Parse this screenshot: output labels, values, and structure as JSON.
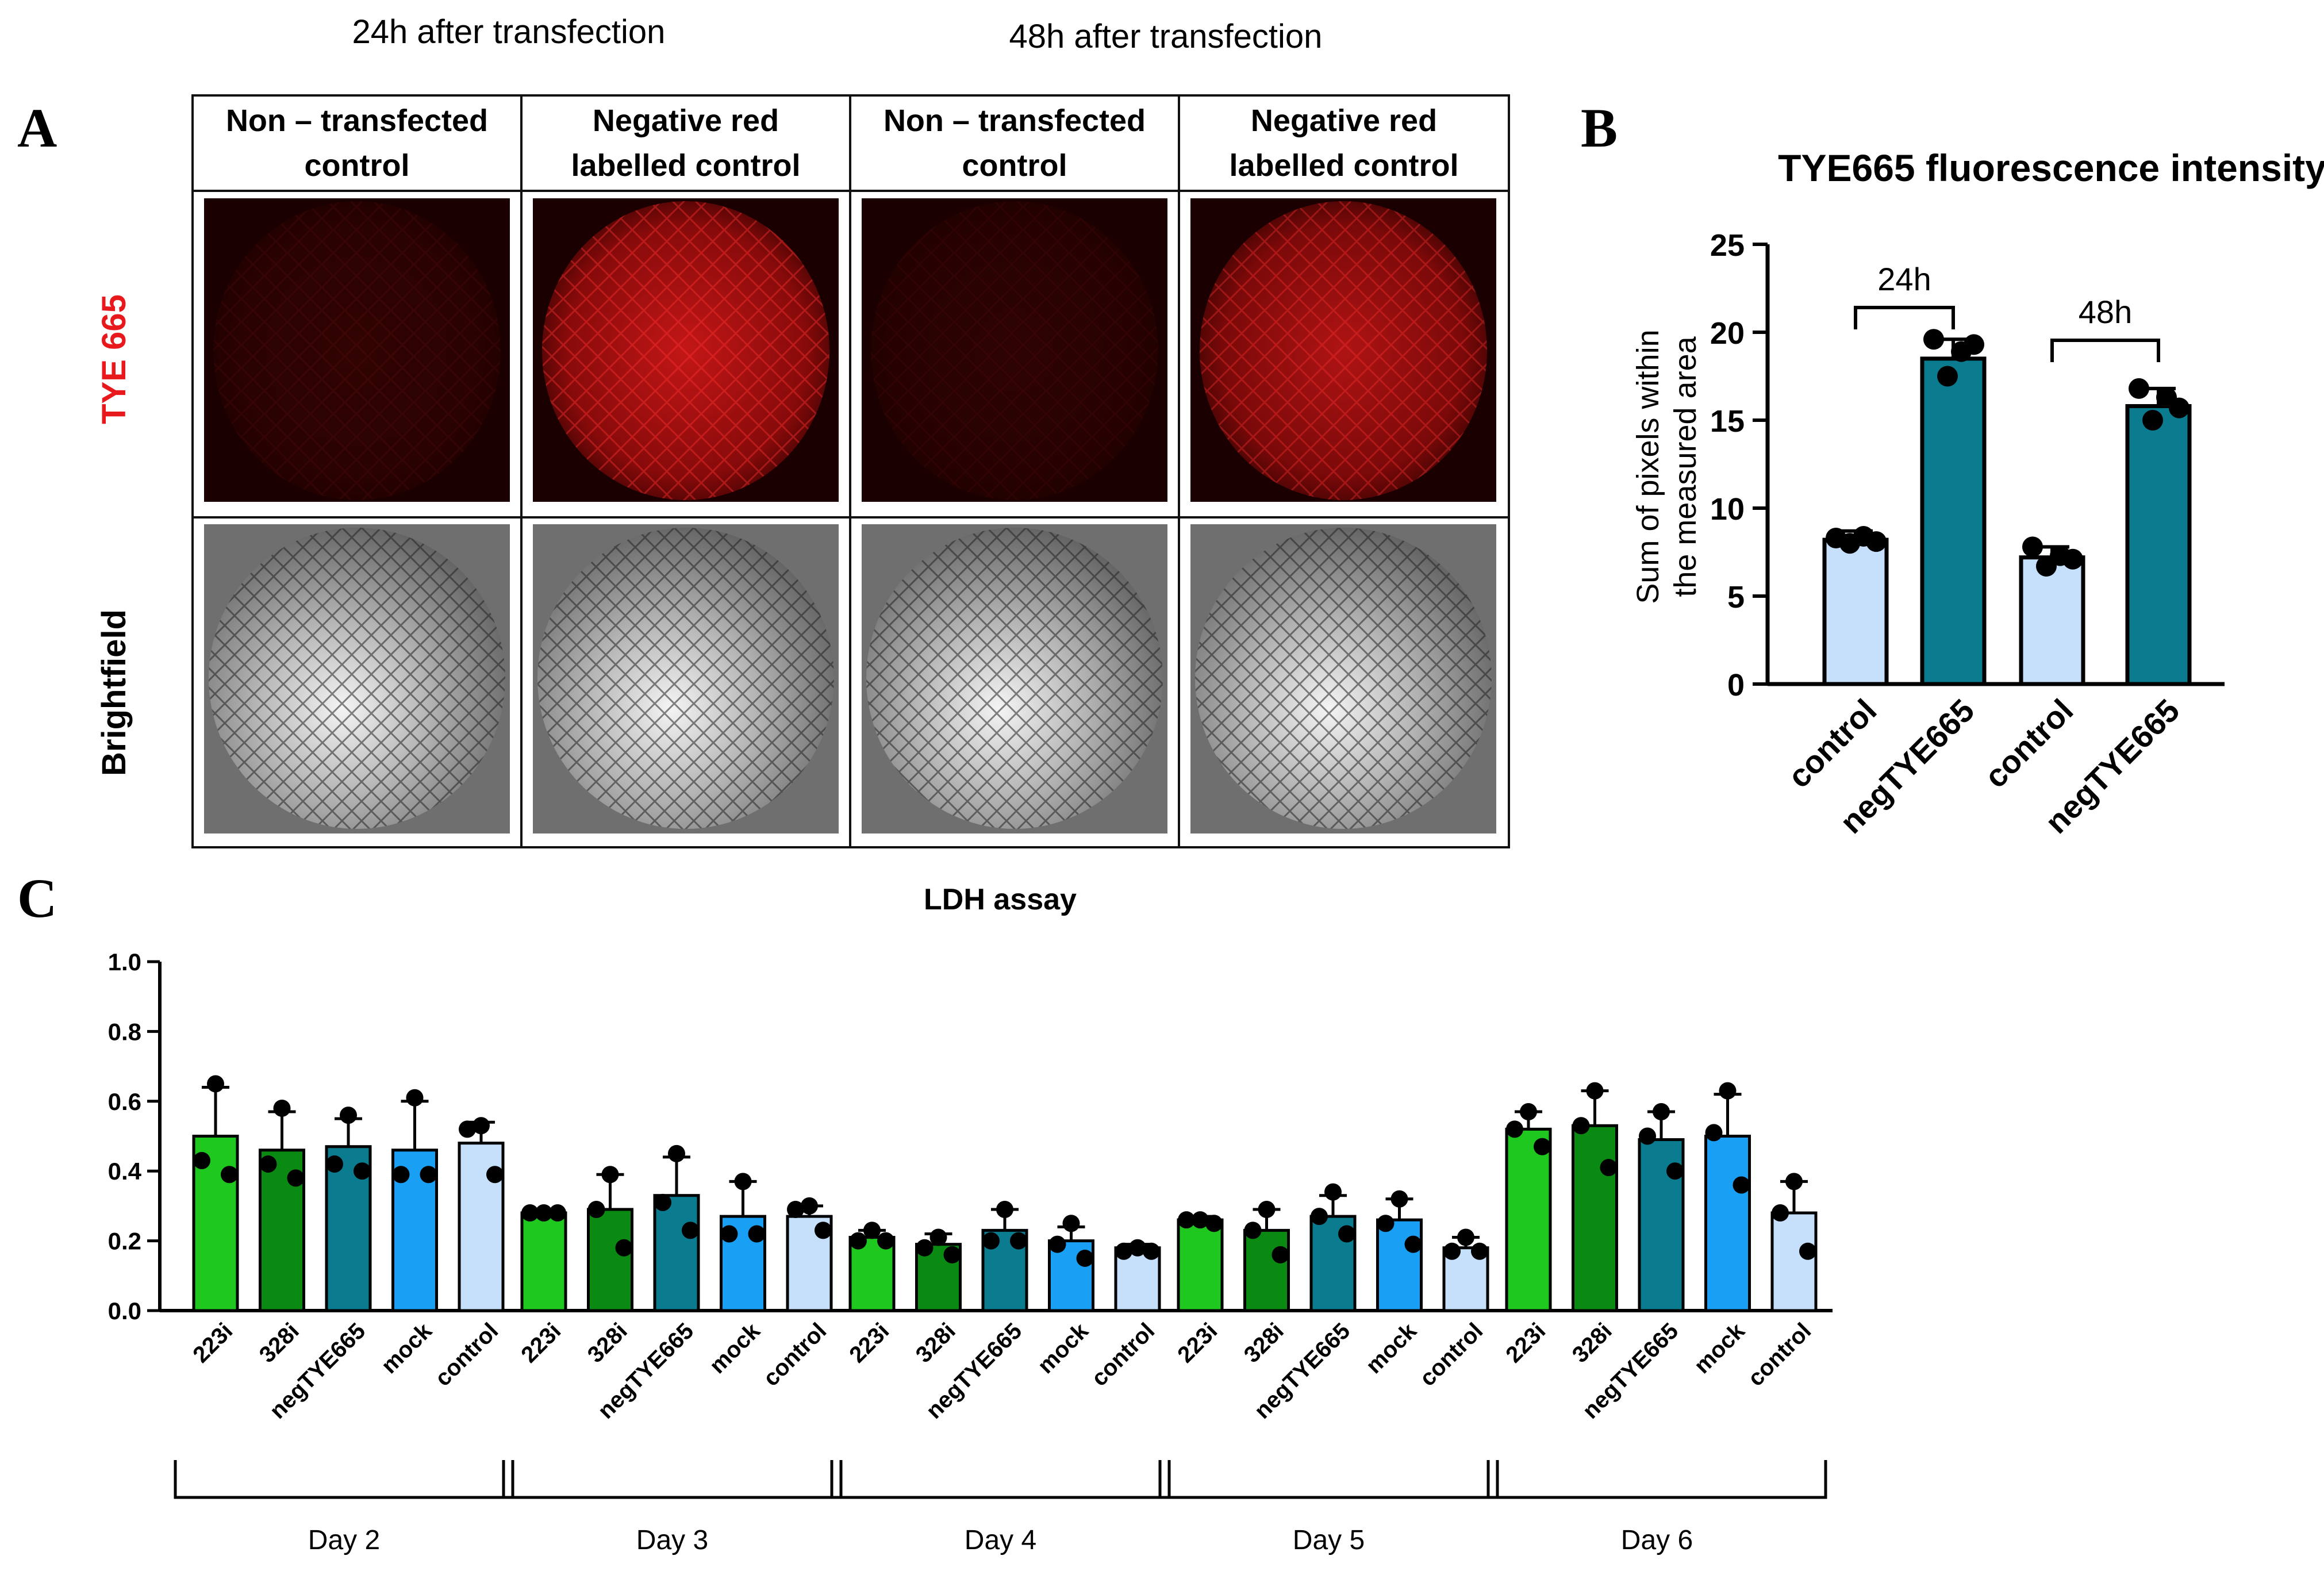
{
  "panel_labels": {
    "a": "A",
    "b": "B",
    "c": "C"
  },
  "panel_a": {
    "timepoints": [
      "24h after transfection",
      "48h after transfection"
    ],
    "column_headers": [
      [
        "Non – transfected",
        "control"
      ],
      [
        "Negative red",
        "labelled control"
      ],
      [
        "Non – transfected",
        "control"
      ],
      [
        "Negative red",
        "labelled control"
      ]
    ],
    "row_labels": {
      "fluorescence": "TYE 665",
      "brightfield": "Brightfield"
    },
    "colors": {
      "fluorescence_label": "#e8191c",
      "fluorescence_bg": "#1a0000",
      "brightfield_bg": "#6f6f6f"
    },
    "fluorescence_levels": [
      0.12,
      0.85,
      0.1,
      0.75
    ]
  },
  "chart_data": [
    {
      "id": "B",
      "type": "bar",
      "title": "TYE665 fluorescence intensity",
      "ylabel": [
        "Sum of pixels within",
        "the measured area"
      ],
      "ylim": [
        0,
        25
      ],
      "yticks": [
        0,
        5,
        10,
        15,
        20,
        25
      ],
      "categories": [
        "control",
        "negTYE665",
        "control",
        "negTYE665"
      ],
      "values": [
        8.2,
        18.5,
        7.2,
        15.8
      ],
      "errors": [
        0.5,
        1.1,
        0.6,
        1.0
      ],
      "points": [
        [
          8.3,
          8.0,
          8.4,
          8.1
        ],
        [
          19.6,
          17.5,
          18.9,
          19.3
        ],
        [
          7.8,
          6.7,
          7.3,
          7.1
        ],
        [
          16.8,
          15.0,
          16.3,
          15.7
        ]
      ],
      "colors": [
        "#c6dffa",
        "#0b7b90",
        "#c6dffa",
        "#0b7b90"
      ],
      "groups": [
        {
          "label": "24h",
          "span": [
            0,
            1
          ]
        },
        {
          "label": "48h",
          "span": [
            2,
            3
          ]
        }
      ]
    },
    {
      "id": "C",
      "type": "bar",
      "title": "LDH assay",
      "ylim": [
        0,
        1.0
      ],
      "yticks": [
        "0.0",
        "0.2",
        "0.4",
        "0.6",
        "0.8",
        "1.0"
      ],
      "categories": [
        "223i",
        "328i",
        "negTYE665",
        "mock",
        "control"
      ],
      "colors": [
        "#1ec81e",
        "#0a8a12",
        "#0b7b90",
        "#19a0f5",
        "#c6dffa"
      ],
      "groups": [
        {
          "label": "Day 2",
          "values": [
            0.5,
            0.46,
            0.47,
            0.46,
            0.48
          ],
          "errors": [
            0.14,
            0.11,
            0.08,
            0.14,
            0.06
          ],
          "points": [
            [
              0.65,
              0.43,
              0.39
            ],
            [
              0.58,
              0.42,
              0.38
            ],
            [
              0.56,
              0.42,
              0.4
            ],
            [
              0.61,
              0.39,
              0.39
            ],
            [
              0.53,
              0.52,
              0.39
            ]
          ]
        },
        {
          "label": "Day 3",
          "values": [
            0.28,
            0.29,
            0.33,
            0.27,
            0.27
          ],
          "errors": [
            0.01,
            0.1,
            0.11,
            0.1,
            0.03
          ],
          "points": [
            [
              0.28,
              0.28,
              0.28
            ],
            [
              0.39,
              0.29,
              0.18
            ],
            [
              0.45,
              0.31,
              0.23
            ],
            [
              0.37,
              0.22,
              0.22
            ],
            [
              0.3,
              0.29,
              0.23
            ]
          ]
        },
        {
          "label": "Day 4",
          "values": [
            0.21,
            0.19,
            0.23,
            0.2,
            0.18
          ],
          "errors": [
            0.02,
            0.03,
            0.06,
            0.04,
            0.01
          ],
          "points": [
            [
              0.23,
              0.2,
              0.2
            ],
            [
              0.21,
              0.18,
              0.16
            ],
            [
              0.29,
              0.2,
              0.2
            ],
            [
              0.25,
              0.19,
              0.15
            ],
            [
              0.18,
              0.17,
              0.17
            ]
          ]
        },
        {
          "label": "Day 5",
          "values": [
            0.26,
            0.23,
            0.27,
            0.26,
            0.18
          ],
          "errors": [
            0.01,
            0.06,
            0.06,
            0.06,
            0.03
          ],
          "points": [
            [
              0.26,
              0.26,
              0.25
            ],
            [
              0.29,
              0.23,
              0.16
            ],
            [
              0.34,
              0.27,
              0.22
            ],
            [
              0.32,
              0.25,
              0.19
            ],
            [
              0.21,
              0.17,
              0.17
            ]
          ]
        },
        {
          "label": "Day 6",
          "values": [
            0.52,
            0.53,
            0.49,
            0.5,
            0.28
          ],
          "errors": [
            0.05,
            0.1,
            0.08,
            0.12,
            0.09
          ],
          "points": [
            [
              0.57,
              0.52,
              0.47
            ],
            [
              0.63,
              0.53,
              0.41
            ],
            [
              0.57,
              0.5,
              0.4
            ],
            [
              0.63,
              0.51,
              0.36
            ],
            [
              0.37,
              0.28,
              0.17
            ]
          ]
        }
      ]
    }
  ]
}
